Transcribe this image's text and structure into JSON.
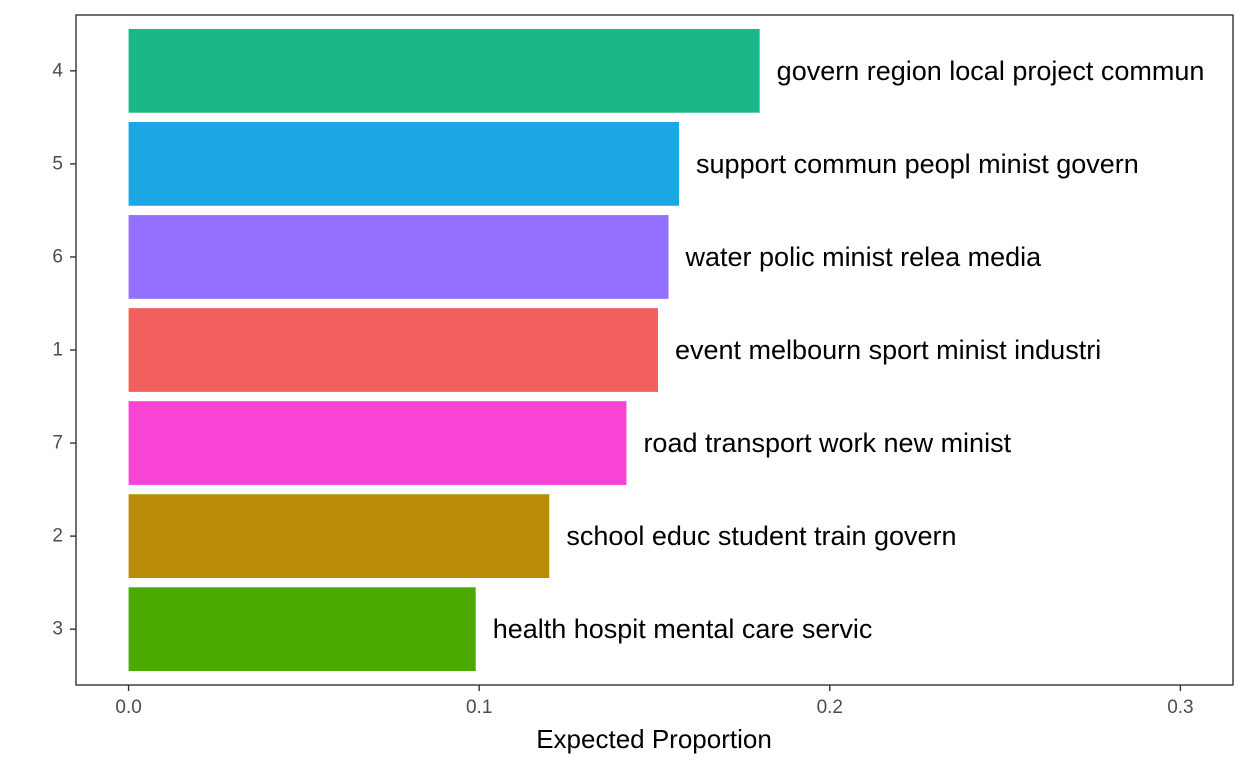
{
  "chart_data": {
    "type": "bar",
    "orientation": "horizontal",
    "title": "",
    "xlabel": "Expected Proportion",
    "ylabel": "",
    "xlim": [
      -0.015,
      0.315
    ],
    "x_ticks": [
      {
        "value": 0.0,
        "label": "0.0"
      },
      {
        "value": 0.1,
        "label": "0.1"
      },
      {
        "value": 0.2,
        "label": "0.2"
      },
      {
        "value": 0.3,
        "label": "0.3"
      }
    ],
    "grid": false,
    "legend": "none",
    "categories": [
      "4",
      "5",
      "6",
      "1",
      "7",
      "2",
      "3"
    ],
    "values": [
      0.18,
      0.157,
      0.154,
      0.151,
      0.142,
      0.12,
      0.099
    ],
    "labels": [
      "govern region local project commun",
      "support commun peopl minist govern",
      "water polic minist relea media",
      "event melbourn sport minist industri",
      "road transport work new minist",
      "school educ student train govern",
      "health hospit mental care servic"
    ],
    "colors": [
      "#1AB888",
      "#1AA7E4",
      "#9370FF",
      "#F15F5F",
      "#F744D4",
      "#B88C08",
      "#4AAA00"
    ]
  }
}
